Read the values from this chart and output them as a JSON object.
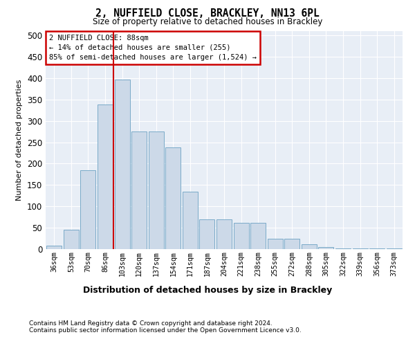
{
  "title": "2, NUFFIELD CLOSE, BRACKLEY, NN13 6PL",
  "subtitle": "Size of property relative to detached houses in Brackley",
  "xlabel": "Distribution of detached houses by size in Brackley",
  "ylabel": "Number of detached properties",
  "categories": [
    "36sqm",
    "53sqm",
    "70sqm",
    "86sqm",
    "103sqm",
    "120sqm",
    "137sqm",
    "154sqm",
    "171sqm",
    "187sqm",
    "204sqm",
    "221sqm",
    "238sqm",
    "255sqm",
    "272sqm",
    "288sqm",
    "305sqm",
    "322sqm",
    "339sqm",
    "356sqm",
    "373sqm"
  ],
  "values": [
    8,
    46,
    185,
    338,
    397,
    275,
    275,
    238,
    135,
    69,
    69,
    62,
    62,
    25,
    25,
    12,
    5,
    2,
    1,
    1,
    2
  ],
  "bar_color": "#ccd9e8",
  "bar_edge_color": "#7aaac8",
  "property_line_label": "2 NUFFIELD CLOSE: 88sqm",
  "annotation_line1": "← 14% of detached houses are smaller (255)",
  "annotation_line2": "85% of semi-detached houses are larger (1,524) →",
  "annotation_box_color": "#ffffff",
  "annotation_box_edge": "#cc0000",
  "vline_color": "#cc0000",
  "vline_x": 3.5,
  "ylim": [
    0,
    510
  ],
  "yticks": [
    0,
    50,
    100,
    150,
    200,
    250,
    300,
    350,
    400,
    450,
    500
  ],
  "plot_bg_color": "#e8eef6",
  "footer1": "Contains HM Land Registry data © Crown copyright and database right 2024.",
  "footer2": "Contains public sector information licensed under the Open Government Licence v3.0."
}
